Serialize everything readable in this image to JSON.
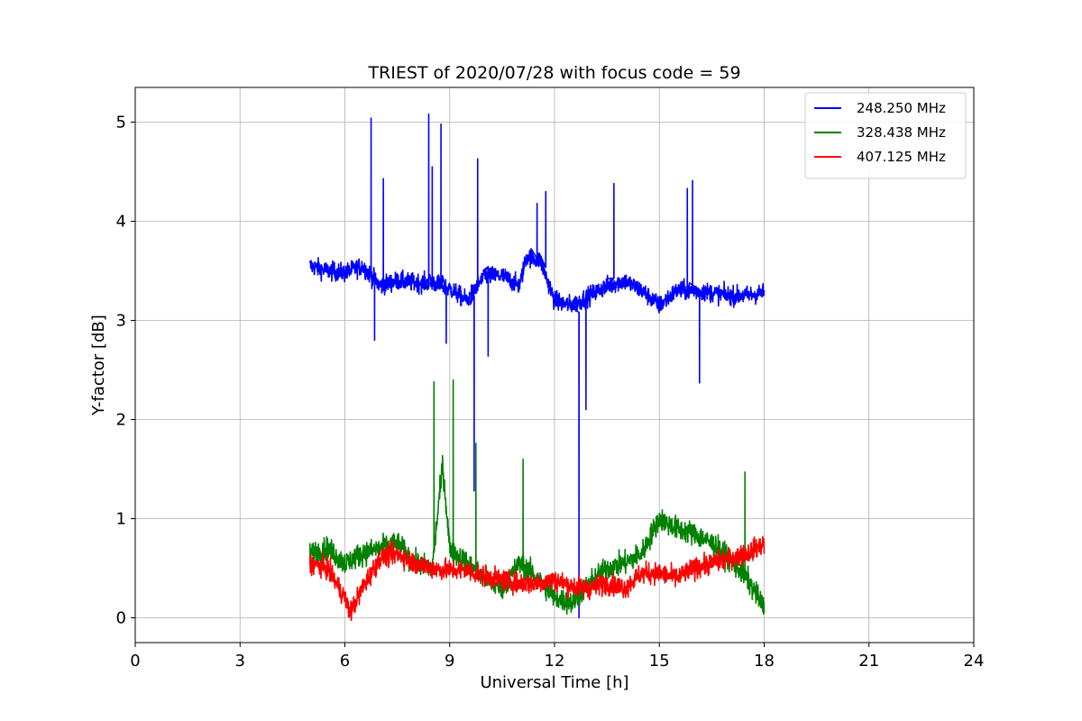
{
  "chart_data": {
    "type": "line",
    "title": "TRIEST of 2020/07/28 with focus code = 59",
    "xlabel": "Universal Time [h]",
    "ylabel": "Y-factor [dB]",
    "xlim": [
      0,
      24
    ],
    "ylim": [
      -0.25,
      5.35
    ],
    "xticks": [
      0,
      3,
      6,
      9,
      12,
      15,
      18,
      21,
      24
    ],
    "yticks": [
      0,
      1,
      2,
      3,
      4,
      5
    ],
    "grid": true,
    "legend_position": "top-right",
    "series": [
      {
        "name": "248.250 MHz",
        "color": "#0000ff",
        "base": [
          [
            5.0,
            3.55
          ],
          [
            5.5,
            3.5
          ],
          [
            6.0,
            3.48
          ],
          [
            6.5,
            3.55
          ],
          [
            7.0,
            3.35
          ],
          [
            7.5,
            3.4
          ],
          [
            8.0,
            3.38
          ],
          [
            8.5,
            3.38
          ],
          [
            9.0,
            3.32
          ],
          [
            9.5,
            3.2
          ],
          [
            10.0,
            3.45
          ],
          [
            10.5,
            3.45
          ],
          [
            11.0,
            3.35
          ],
          [
            11.2,
            3.65
          ],
          [
            11.6,
            3.6
          ],
          [
            12.0,
            3.2
          ],
          [
            12.5,
            3.15
          ],
          [
            13.0,
            3.25
          ],
          [
            13.5,
            3.35
          ],
          [
            14.0,
            3.4
          ],
          [
            14.5,
            3.3
          ],
          [
            15.0,
            3.15
          ],
          [
            15.5,
            3.3
          ],
          [
            16.0,
            3.3
          ],
          [
            16.5,
            3.28
          ],
          [
            17.0,
            3.25
          ],
          [
            17.5,
            3.25
          ],
          [
            18.0,
            3.28
          ]
        ],
        "noise": 0.08,
        "spikes": [
          [
            6.75,
            5.04
          ],
          [
            6.85,
            2.8
          ],
          [
            7.1,
            4.43
          ],
          [
            8.4,
            5.08
          ],
          [
            8.5,
            4.55
          ],
          [
            8.75,
            4.98
          ],
          [
            8.9,
            2.77
          ],
          [
            9.7,
            1.28
          ],
          [
            9.8,
            4.63
          ],
          [
            10.1,
            2.64
          ],
          [
            11.5,
            4.18
          ],
          [
            11.75,
            4.3
          ],
          [
            12.7,
            0.0
          ],
          [
            12.9,
            2.1
          ],
          [
            13.7,
            4.38
          ],
          [
            15.8,
            4.33
          ],
          [
            15.95,
            4.41
          ],
          [
            16.15,
            2.37
          ]
        ]
      },
      {
        "name": "328.438 MHz",
        "color": "#008000",
        "base": [
          [
            5.0,
            0.65
          ],
          [
            5.5,
            0.7
          ],
          [
            6.0,
            0.55
          ],
          [
            6.5,
            0.65
          ],
          [
            7.0,
            0.7
          ],
          [
            7.5,
            0.75
          ],
          [
            8.0,
            0.55
          ],
          [
            8.5,
            0.5
          ],
          [
            8.8,
            1.55
          ],
          [
            9.0,
            0.7
          ],
          [
            9.5,
            0.55
          ],
          [
            10.0,
            0.4
          ],
          [
            10.5,
            0.3
          ],
          [
            11.0,
            0.55
          ],
          [
            11.5,
            0.4
          ],
          [
            12.0,
            0.2
          ],
          [
            12.5,
            0.15
          ],
          [
            13.0,
            0.35
          ],
          [
            13.5,
            0.5
          ],
          [
            14.0,
            0.55
          ],
          [
            14.5,
            0.65
          ],
          [
            15.0,
            1.0
          ],
          [
            15.5,
            0.9
          ],
          [
            16.0,
            0.85
          ],
          [
            16.5,
            0.75
          ],
          [
            17.0,
            0.6
          ],
          [
            17.5,
            0.4
          ],
          [
            18.0,
            0.1
          ]
        ],
        "noise": 0.1,
        "spikes": [
          [
            8.55,
            2.38
          ],
          [
            9.1,
            2.4
          ],
          [
            9.75,
            1.76
          ],
          [
            11.1,
            1.6
          ],
          [
            17.45,
            1.47
          ]
        ]
      },
      {
        "name": "407.125 MHz",
        "color": "#ff0000",
        "base": [
          [
            5.0,
            0.55
          ],
          [
            5.5,
            0.5
          ],
          [
            6.0,
            0.2
          ],
          [
            6.15,
            0.05
          ],
          [
            6.5,
            0.3
          ],
          [
            7.0,
            0.6
          ],
          [
            7.5,
            0.65
          ],
          [
            8.0,
            0.55
          ],
          [
            8.5,
            0.5
          ],
          [
            9.0,
            0.48
          ],
          [
            9.5,
            0.48
          ],
          [
            10.0,
            0.42
          ],
          [
            10.5,
            0.38
          ],
          [
            11.0,
            0.35
          ],
          [
            11.5,
            0.35
          ],
          [
            12.0,
            0.38
          ],
          [
            12.5,
            0.32
          ],
          [
            13.0,
            0.3
          ],
          [
            13.5,
            0.35
          ],
          [
            14.0,
            0.3
          ],
          [
            14.5,
            0.45
          ],
          [
            15.0,
            0.45
          ],
          [
            15.5,
            0.4
          ],
          [
            16.0,
            0.5
          ],
          [
            16.5,
            0.55
          ],
          [
            17.0,
            0.6
          ],
          [
            17.5,
            0.65
          ],
          [
            18.0,
            0.75
          ]
        ],
        "noise": 0.09,
        "spikes": []
      }
    ]
  }
}
